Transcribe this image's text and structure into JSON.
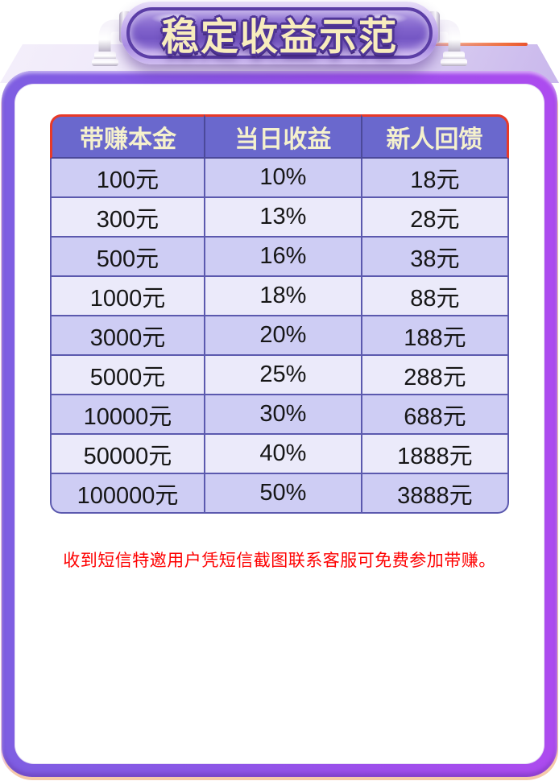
{
  "banner": {
    "title": "稳定收益示范"
  },
  "table": {
    "headers": [
      "带赚本金",
      "当日收益",
      "新人回馈"
    ],
    "rows": [
      [
        "100元",
        "10%",
        "18元"
      ],
      [
        "300元",
        "13%",
        "28元"
      ],
      [
        "500元",
        "16%",
        "38元"
      ],
      [
        "1000元",
        "18%",
        "88元"
      ],
      [
        "3000元",
        "20%",
        "188元"
      ],
      [
        "5000元",
        "25%",
        "288元"
      ],
      [
        "10000元",
        "30%",
        "688元"
      ],
      [
        "50000元",
        "40%",
        "1888元"
      ],
      [
        "100000元",
        "50%",
        "3888元"
      ]
    ]
  },
  "notice": {
    "text": "收到短信特邀用户凭短信截图联系客服可免费参加带赚。"
  },
  "colors": {
    "frame_purple_left": "#7e5ee2",
    "frame_purple_right": "#ad4bef",
    "surface_lavender": "#c9b7ec",
    "banner_fill": "#7557c4",
    "banner_ring": "#5b3ea6",
    "banner_text": "#f7ecbd",
    "header_bg": "#6a68cd",
    "header_text": "#f5f1cd",
    "table_top_border": "#e83a28",
    "row_odd": "#cecdf4",
    "row_even": "#ebeafa",
    "cell_border": "#5b59ae",
    "notice_red": "#fe0000",
    "peach_edge": "#f6c9a9"
  }
}
